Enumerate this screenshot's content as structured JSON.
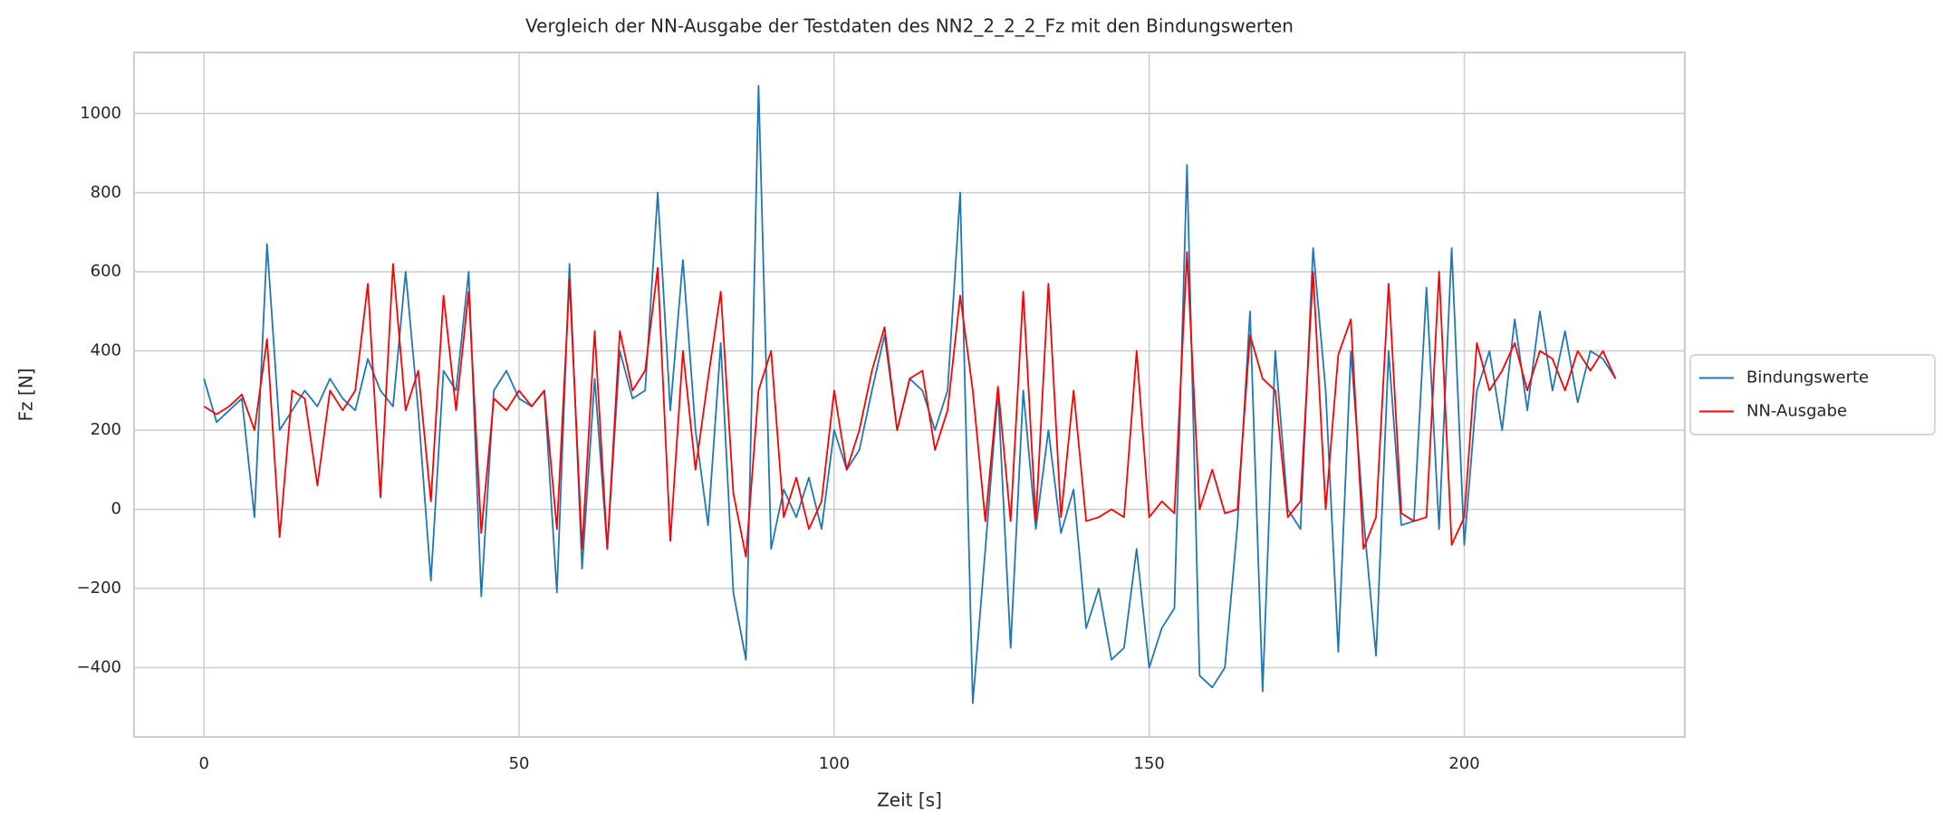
{
  "chart_data": {
    "type": "line",
    "title": "Vergleich der NN-Ausgabe der Testdaten des NN2_2_2_2_Fz mit den Bindungswerten",
    "xlabel": "Zeit [s]",
    "ylabel": "Fz [N]",
    "x": [
      0,
      2,
      4,
      6,
      8,
      10,
      12,
      14,
      16,
      18,
      20,
      22,
      24,
      26,
      28,
      30,
      32,
      34,
      36,
      38,
      40,
      42,
      44,
      46,
      48,
      50,
      52,
      54,
      56,
      58,
      60,
      62,
      64,
      66,
      68,
      70,
      72,
      74,
      76,
      78,
      80,
      82,
      84,
      86,
      88,
      90,
      92,
      94,
      96,
      98,
      100,
      102,
      104,
      106,
      108,
      110,
      112,
      114,
      116,
      118,
      120,
      122,
      124,
      126,
      128,
      130,
      132,
      134,
      136,
      138,
      140,
      142,
      144,
      146,
      148,
      150,
      152,
      154,
      156,
      158,
      160,
      162,
      164,
      166,
      168,
      170,
      172,
      174,
      176,
      178,
      180,
      182,
      184,
      186,
      188,
      190,
      192,
      194,
      196,
      198,
      200,
      202,
      204,
      206,
      208,
      210,
      212,
      214,
      216,
      218,
      220,
      222,
      224
    ],
    "series": [
      {
        "name": "Bindungswerte",
        "color": "#1f77b4",
        "values": [
          330,
          220,
          250,
          280,
          -20,
          670,
          200,
          250,
          300,
          260,
          330,
          280,
          250,
          380,
          300,
          260,
          600,
          250,
          -180,
          350,
          300,
          600,
          -220,
          300,
          350,
          280,
          260,
          300,
          -210,
          620,
          -150,
          330,
          -100,
          400,
          280,
          300,
          800,
          250,
          630,
          200,
          -40,
          420,
          -210,
          -380,
          1070,
          -100,
          50,
          -20,
          80,
          -50,
          200,
          100,
          150,
          300,
          440,
          200,
          330,
          300,
          200,
          300,
          800,
          -490,
          -100,
          300,
          -350,
          300,
          -50,
          200,
          -60,
          50,
          -300,
          -200,
          -380,
          -350,
          -100,
          -400,
          -300,
          -250,
          870,
          -420,
          -450,
          -400,
          -40,
          500,
          -460,
          400,
          0,
          -50,
          660,
          300,
          -360,
          400,
          -20,
          -370,
          400,
          -40,
          -30,
          560,
          -50,
          660,
          -90,
          300,
          400,
          200,
          480,
          250,
          500,
          300,
          450,
          270,
          400,
          380,
          330
        ]
      },
      {
        "name": "NN-Ausgabe",
        "color": "#ff0000",
        "values": [
          260,
          240,
          260,
          290,
          200,
          430,
          -70,
          300,
          280,
          60,
          300,
          250,
          300,
          570,
          30,
          620,
          250,
          350,
          20,
          540,
          250,
          550,
          -60,
          280,
          250,
          300,
          260,
          300,
          -50,
          580,
          -100,
          450,
          -100,
          450,
          300,
          350,
          610,
          -80,
          400,
          100,
          330,
          550,
          40,
          -120,
          300,
          400,
          -20,
          80,
          -50,
          20,
          300,
          100,
          200,
          350,
          460,
          200,
          330,
          350,
          150,
          250,
          540,
          300,
          -30,
          310,
          -30,
          550,
          -30,
          570,
          -20,
          300,
          -30,
          -20,
          0,
          -20,
          400,
          -20,
          20,
          -10,
          650,
          0,
          100,
          -10,
          0,
          440,
          330,
          300,
          -20,
          20,
          600,
          0,
          390,
          480,
          -100,
          -20,
          570,
          -10,
          -30,
          -20,
          600,
          -90,
          -20,
          420,
          300,
          350,
          420,
          300,
          400,
          380,
          300,
          400,
          350,
          400,
          330
        ]
      }
    ],
    "xlim": [
      -11.1,
      235
    ],
    "xticks": [
      0,
      50,
      100,
      150,
      200
    ],
    "ylim": [
      -575,
      1154
    ],
    "yticks": [
      {
        "value": -400,
        "label": "−400"
      },
      {
        "value": -200,
        "label": "−200"
      },
      0,
      200,
      400,
      600,
      800,
      1000
    ],
    "grid": true,
    "legend": "center right outside"
  }
}
